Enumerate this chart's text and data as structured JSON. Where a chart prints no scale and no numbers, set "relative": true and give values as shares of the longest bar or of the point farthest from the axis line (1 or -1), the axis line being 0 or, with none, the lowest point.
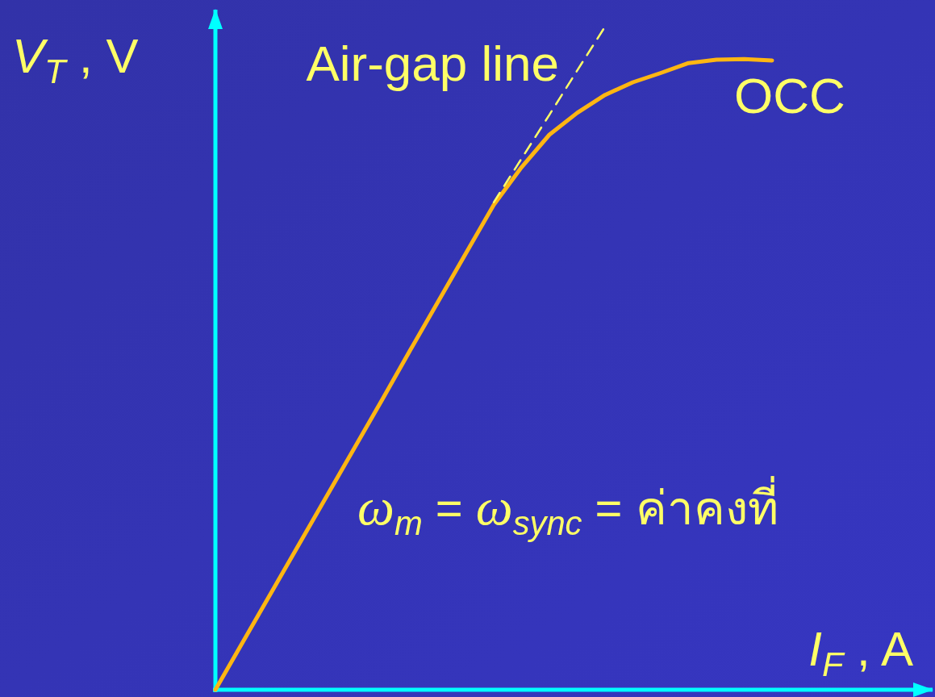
{
  "chart_data": {
    "type": "line",
    "relative": true,
    "xlabel": "I$_{F}$ , A",
    "ylabel": "V$_{T}$ , V",
    "annotations": [
      "ω$_{m}$ = ω$_{sync}$ = ค่าคงที่"
    ],
    "categories": [
      null,
      null,
      null,
      null,
      null,
      null,
      null,
      null,
      null,
      null,
      null,
      null,
      null,
      null,
      null,
      null,
      null,
      null,
      null,
      null,
      null
    ],
    "series": [
      {
        "name": "OCC",
        "color": "#ffb612",
        "values": [
          0,
          0.073,
          0.146,
          0.219,
          0.292,
          0.365,
          0.438,
          0.512,
          0.585,
          0.658,
          0.731,
          0.788,
          0.837,
          0.87,
          0.897,
          0.916,
          0.93,
          0.945,
          0.95,
          0.951,
          0.949
        ]
      },
      {
        "name": "Air-gap line",
        "color": "#ffff66",
        "line_style": "dashed",
        "values": [
          null,
          null,
          null,
          null,
          null,
          null,
          null,
          null,
          null,
          null,
          0.735,
          0.801,
          0.867,
          0.934,
          1.0,
          null,
          null,
          null,
          null,
          null,
          null
        ]
      }
    ]
  }
}
